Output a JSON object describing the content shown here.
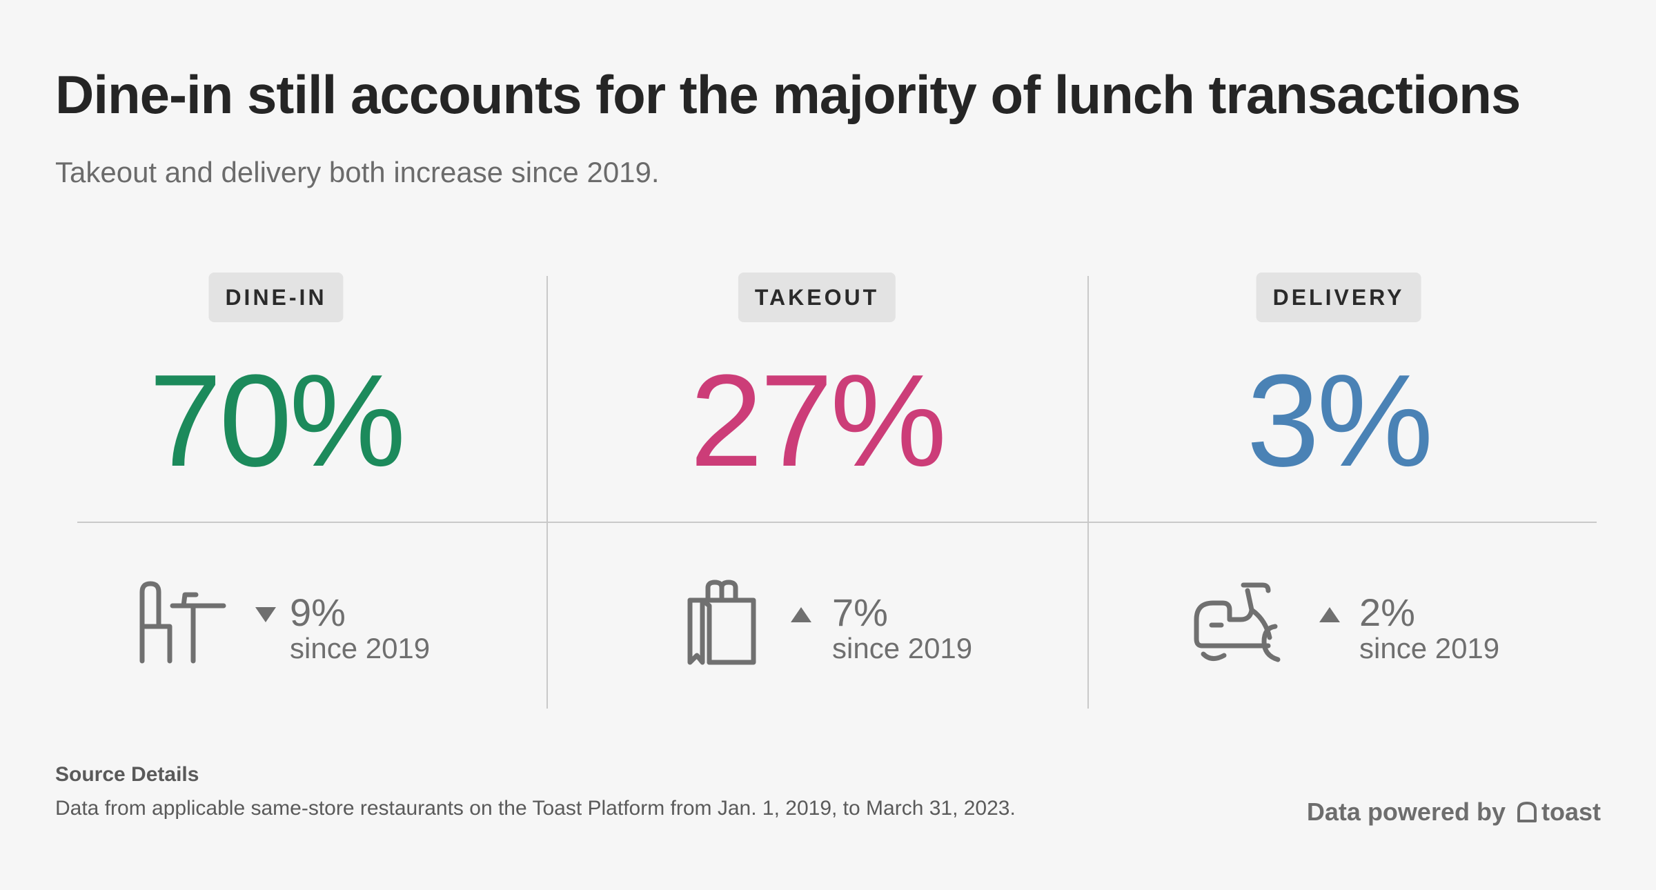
{
  "title": "Dine-in still accounts for the majority of lunch transactions",
  "subtitle": "Takeout and delivery both increase since 2019.",
  "chart_data": {
    "type": "table",
    "categories": [
      "DINE-IN",
      "TAKEOUT",
      "DELIVERY"
    ],
    "values": [
      70,
      27,
      3
    ],
    "value_labels": [
      "70%",
      "27%",
      "3%"
    ],
    "change_since_2019": [
      -9,
      7,
      2
    ],
    "change_labels": [
      "9%",
      "7%",
      "2%"
    ],
    "change_direction": [
      "down",
      "up",
      "up"
    ],
    "change_caption": "since 2019",
    "colors": [
      "#1c8a5b",
      "#cc3d78",
      "#4a82b5"
    ],
    "icons": [
      "table-and-chair-icon",
      "shopping-bag-icon",
      "scooter-icon"
    ]
  },
  "source": {
    "heading": "Source Details",
    "text": "Data from applicable same-store restaurants on the Toast Platform from Jan. 1, 2019, to March 31, 2023."
  },
  "footer": {
    "powered_by": "Data powered by",
    "brand": "toast"
  }
}
